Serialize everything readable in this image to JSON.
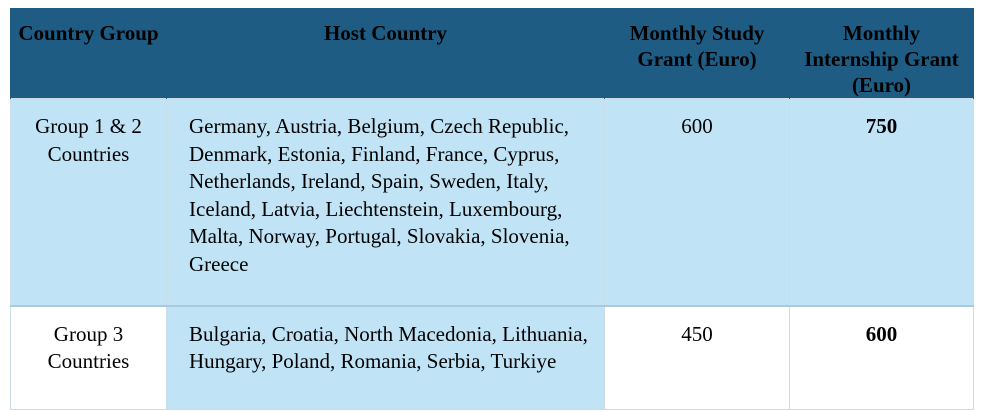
{
  "table": {
    "headers": [
      "Country Group",
      "Host Country",
      "Monthly Study Grant (Euro)",
      "Monthly Internship Grant (Euro)"
    ],
    "rows": [
      {
        "group": "Group 1 & 2 Countries",
        "host_countries": "Germany, Austria, Belgium, Czech Republic, Denmark, Estonia, Finland, France, Cyprus, Netherlands, Ireland, Spain, Sweden, Italy, Iceland, Latvia, Liechtenstein, Luxembourg, Malta, Norway, Portugal, Slovakia, Slovenia, Greece",
        "study_grant": "600",
        "internship_grant": "750"
      },
      {
        "group": "Group 3 Countries",
        "host_countries": "Bulgaria, Croatia, North Macedonia, Lithuania, Hungary, Poland, Romania, Serbia, Turkiye",
        "study_grant": "450",
        "internship_grant": "600"
      }
    ]
  }
}
